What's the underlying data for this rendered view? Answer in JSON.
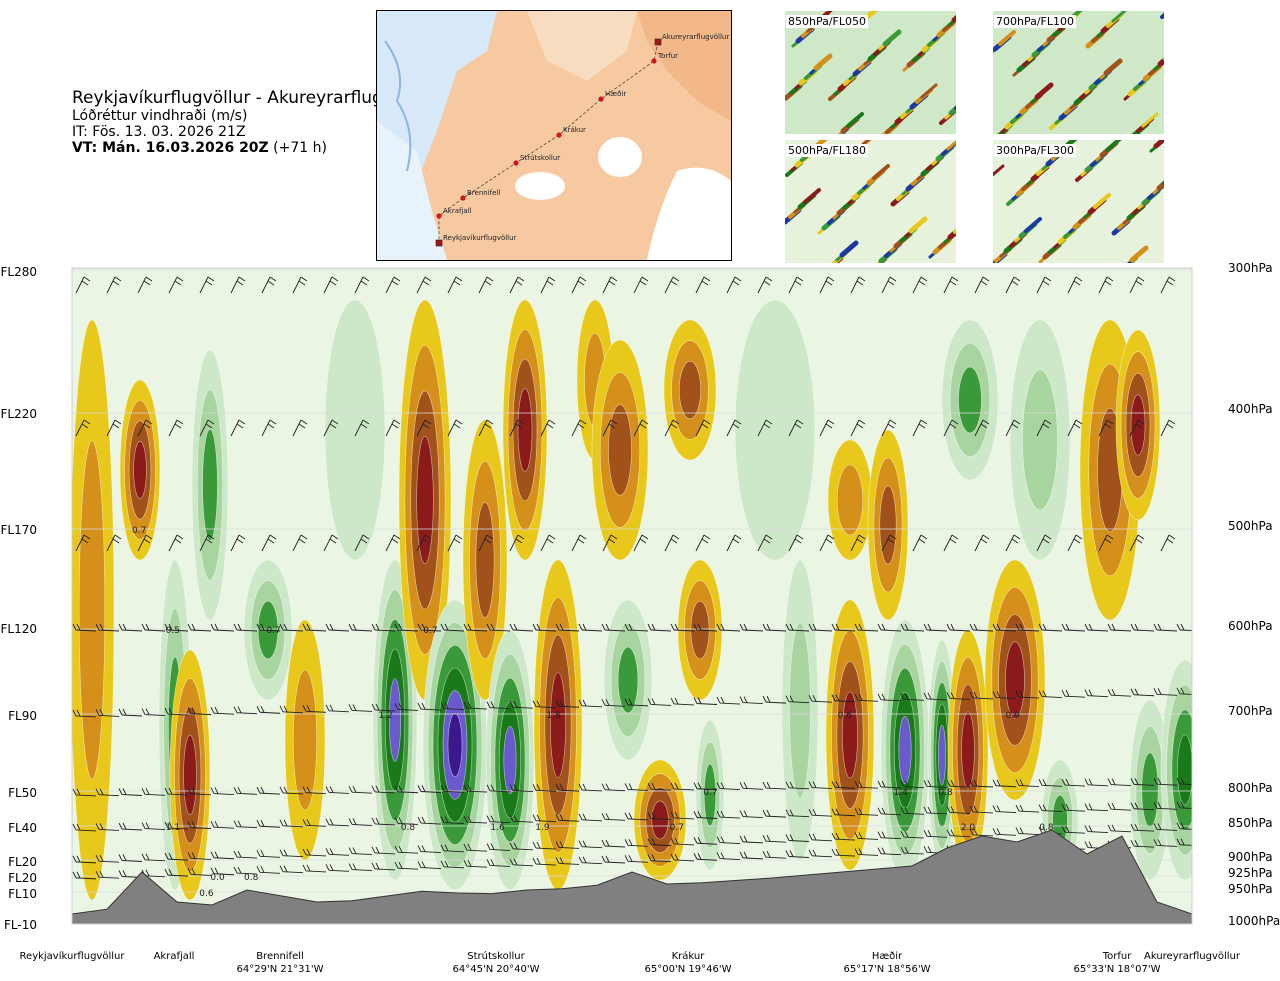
{
  "header": {
    "title": "Reykjavíkurflugvöllur - Akureyrarflugvöllur",
    "variable": "Lóðréttur vindhraði (m/s)",
    "issue_time": "IT: Fös. 13. 03. 2026 21Z",
    "valid_time": "VT: Mán. 16.03.2026 20Z",
    "lead_time": "(+71 h)"
  },
  "route_map": {
    "points": [
      {
        "name": "Akureyrarflugvöllur",
        "marker": "square"
      },
      {
        "name": "Torfur",
        "marker": "dot"
      },
      {
        "name": "Hæðir",
        "marker": "dot"
      },
      {
        "name": "Krákur",
        "marker": "dot"
      },
      {
        "name": "Strútskollur",
        "marker": "dot"
      },
      {
        "name": "Brennifell",
        "marker": "dot"
      },
      {
        "name": "Akrafjall",
        "marker": "dot"
      },
      {
        "name": "Reykjavíkurflugvöllur",
        "marker": "square"
      }
    ]
  },
  "level_maps": [
    {
      "label": "850hPa/FL050"
    },
    {
      "label": "700hPa/FL100"
    },
    {
      "label": "500hPa/FL180"
    },
    {
      "label": "300hPa/FL300"
    }
  ],
  "colors": {
    "strong_up": "#8b1a1a",
    "up": "#a0521a",
    "weak_up": "#d4901a",
    "slight_up": "#e8c81a",
    "neutral": "#f5eeb0",
    "slight_down": "#cde8c8",
    "weak_down": "#a8d4a0",
    "down": "#3a9a3a",
    "strong_down": "#1a7a1a",
    "very_strong_down": "#6a5acd",
    "extreme_down": "#3a1a8a",
    "terrain": "#808080"
  },
  "chart_data": {
    "type": "heatmap",
    "y_axis_left": [
      "FL280",
      "FL220",
      "FL170",
      "FL120",
      "FL90",
      "FL50",
      "FL40",
      "FL20",
      "FL20",
      "FL10",
      "FL-10"
    ],
    "y_axis_right": [
      "300hPa",
      "400hPa",
      "500hPa",
      "600hPa",
      "700hPa",
      "800hPa",
      "850hPa",
      "900hPa",
      "925hPa",
      "950hPa",
      "1000hPa"
    ],
    "x_locations": [
      {
        "name": "Reykjavíkurflugvöllur",
        "coord": ""
      },
      {
        "name": "Akrafjall",
        "coord": ""
      },
      {
        "name": "Brennifell",
        "coord": "64°29'N 21°31'W"
      },
      {
        "name": "Strútskollur",
        "coord": "64°45'N 20°40'W"
      },
      {
        "name": "Krákur",
        "coord": "65°00'N 19°46'W"
      },
      {
        "name": "Hæðir",
        "coord": "65°17'N 18°56'W"
      },
      {
        "name": "Torfur",
        "coord": "65°33'N 18°07'W"
      },
      {
        "name": "Akureyrarflugvöllur",
        "coord": ""
      }
    ],
    "contour_labels": [
      {
        "text": "0.7",
        "route_frac": 0.06,
        "level": "500hPa"
      },
      {
        "text": "0.5",
        "route_frac": 0.09,
        "level": "600hPa"
      },
      {
        "text": "0.7",
        "route_frac": 0.18,
        "level": "600hPa"
      },
      {
        "text": "0.7",
        "route_frac": 0.32,
        "level": "600hPa"
      },
      {
        "text": "1.2",
        "route_frac": 0.28,
        "level": "700hPa"
      },
      {
        "text": "1.8",
        "route_frac": 0.43,
        "level": "700hPa"
      },
      {
        "text": "0.6",
        "route_frac": 0.69,
        "level": "700hPa"
      },
      {
        "text": "0.9",
        "route_frac": 0.84,
        "level": "700hPa"
      },
      {
        "text": "0.7",
        "route_frac": 0.57,
        "level": "800hPa"
      },
      {
        "text": "1.4",
        "route_frac": 0.74,
        "level": "800hPa"
      },
      {
        "text": "0.8",
        "route_frac": 0.78,
        "level": "800hPa"
      },
      {
        "text": "1.1",
        "route_frac": 0.09,
        "level": "850hPa"
      },
      {
        "text": "0.8",
        "route_frac": 0.3,
        "level": "850hPa"
      },
      {
        "text": "1.6",
        "route_frac": 0.38,
        "level": "850hPa"
      },
      {
        "text": "1.9",
        "route_frac": 0.42,
        "level": "850hPa"
      },
      {
        "text": "0.7",
        "route_frac": 0.54,
        "level": "850hPa"
      },
      {
        "text": "2.0",
        "route_frac": 0.8,
        "level": "850hPa"
      },
      {
        "text": "0.8",
        "route_frac": 0.87,
        "level": "850hPa"
      },
      {
        "text": "0.6",
        "route_frac": 0.12,
        "level": "950hPa"
      },
      {
        "text": "0.0",
        "route_frac": 0.13,
        "level": "925hPa"
      },
      {
        "text": "0.8",
        "route_frac": 0.16,
        "level": "925hPa"
      }
    ],
    "terrain_profile_m": [
      0,
      80,
      700,
      200,
      150,
      400,
      300,
      200,
      220,
      300,
      380,
      350,
      340,
      400,
      420,
      480,
      700,
      500,
      520,
      560,
      600,
      650,
      700,
      750,
      800,
      1100,
      1300,
      1200,
      1400,
      1000,
      1300,
      200,
      0
    ]
  }
}
